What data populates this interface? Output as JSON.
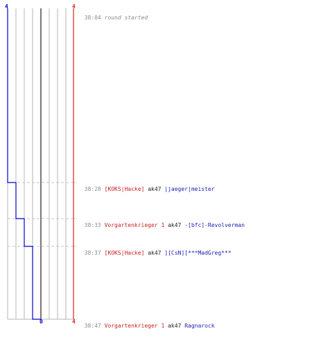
{
  "colors": {
    "blue_team": "#0000cc",
    "red_team": "#e02020",
    "grid": "#b4b4b4",
    "center": "#555555",
    "dash": "#c4c4c4",
    "time_text": "#8c8c8c"
  },
  "axis": {
    "blue_top": "4",
    "red_top": "4",
    "bottom_center": "0",
    "red_bottom": "4"
  },
  "start": {
    "time": "38:04",
    "text": "round started"
  },
  "events": [
    {
      "time": "38:28",
      "killer": "[KOKS|Hacke]",
      "weapon": "ak47",
      "victim": "|jaeger|meister",
      "blue_alive": 3
    },
    {
      "time": "38:33",
      "killer": "Vorgartenkrieger 1",
      "weapon": "ak47",
      "victim": "-[bfc]-Revolverman",
      "blue_alive": 2
    },
    {
      "time": "38:37",
      "killer": "[KOKS|Hacke]",
      "weapon": "ak47",
      "victim": "][CsN][***MadGreg***",
      "blue_alive": 1
    },
    {
      "time": "38:47",
      "killer": "Vorgartenkrieger 1",
      "weapon": "ak47",
      "victim": "Ragnarock",
      "blue_alive": 0
    }
  ]
}
